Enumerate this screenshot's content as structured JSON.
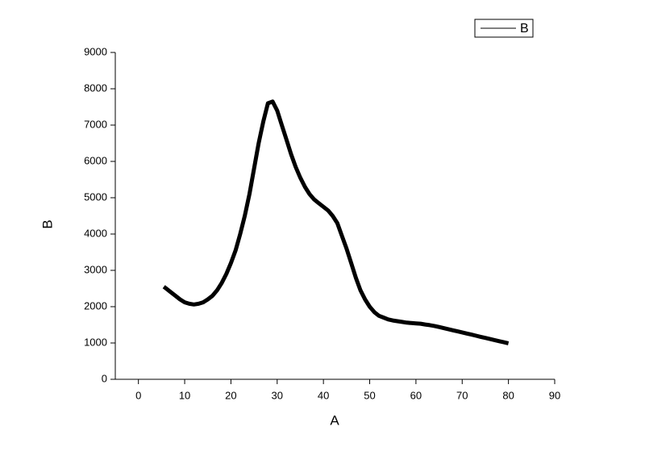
{
  "chart_data": {
    "type": "line",
    "x_label": "A",
    "y_label": "B",
    "x": [
      5.5,
      6,
      7,
      8,
      9,
      10,
      11,
      12,
      13,
      14,
      15,
      16,
      17,
      18,
      19,
      20,
      21,
      22,
      23,
      24,
      25,
      26,
      27,
      28,
      29,
      30,
      31,
      32,
      33,
      34,
      35,
      36,
      37,
      38,
      39,
      40,
      41,
      42,
      43,
      44,
      45,
      46,
      47,
      48,
      49,
      50,
      51,
      52,
      53,
      54,
      55,
      56,
      57,
      58,
      59,
      60,
      61,
      62,
      63,
      64,
      65,
      66,
      67,
      68,
      69,
      70,
      71,
      72,
      73,
      74,
      75,
      76,
      77,
      78,
      79,
      80
    ],
    "series": [
      {
        "name": "B",
        "color": "#000000",
        "values": [
          2550,
          2500,
          2400,
          2300,
          2200,
          2120,
          2080,
          2060,
          2080,
          2120,
          2200,
          2300,
          2450,
          2650,
          2900,
          3200,
          3550,
          4000,
          4500,
          5100,
          5800,
          6500,
          7100,
          7600,
          7650,
          7400,
          7000,
          6600,
          6200,
          5850,
          5550,
          5300,
          5100,
          4950,
          4850,
          4750,
          4650,
          4500,
          4300,
          3950,
          3600,
          3200,
          2800,
          2450,
          2200,
          2000,
          1850,
          1750,
          1700,
          1650,
          1620,
          1600,
          1580,
          1560,
          1550,
          1540,
          1530,
          1510,
          1490,
          1470,
          1440,
          1410,
          1380,
          1350,
          1320,
          1290,
          1260,
          1230,
          1200,
          1170,
          1140,
          1110,
          1080,
          1050,
          1020,
          990
        ]
      }
    ],
    "xlim": [
      -5,
      90
    ],
    "xticks": [
      0,
      10,
      20,
      30,
      40,
      50,
      60,
      70,
      80,
      90
    ],
    "ylim": [
      0,
      9000
    ],
    "yticks": [
      0,
      1000,
      2000,
      3000,
      4000,
      5000,
      6000,
      7000,
      8000,
      9000
    ],
    "legend": "top-right"
  }
}
